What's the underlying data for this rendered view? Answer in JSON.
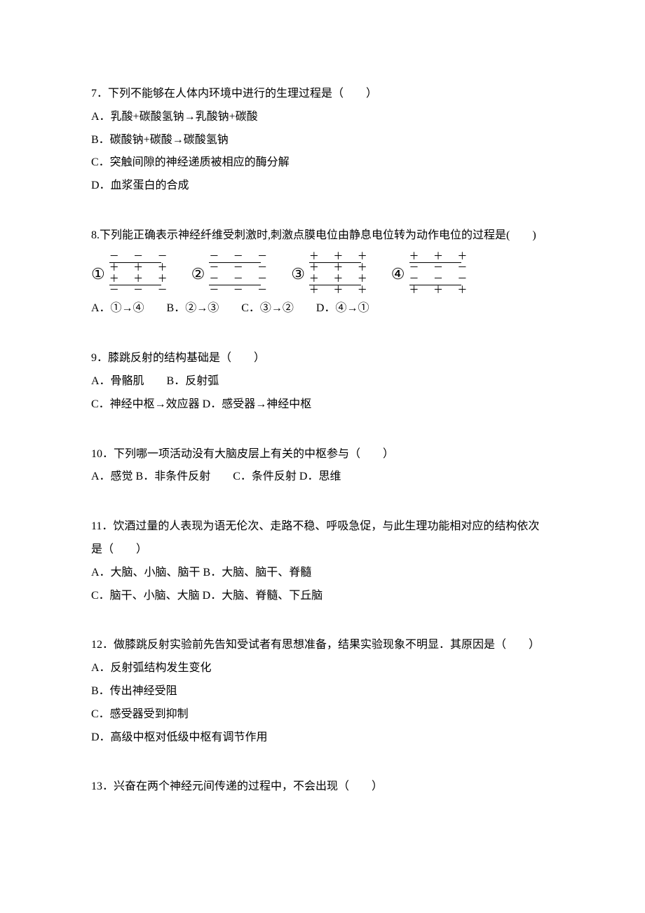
{
  "q7": {
    "text": "7．下列不能够在人体内环境中进行的生理过程是（　　）",
    "a": "A．乳酸+碳酸氢钠→乳酸钠+碳酸",
    "b": "B．碳酸钠+碳酸→碳酸氢钠",
    "c": "C．突触间隙的神经递质被相应的酶分解",
    "d": "D．血浆蛋白的合成"
  },
  "q8": {
    "text": "8.下列能正确表示神经纤维受刺激时,刺激点膜电位由静息电位转为动作电位的过程是(　　)",
    "options": "A．①→④　　B．②→③　　C．③→②　　D．④→①",
    "diagrams": {
      "nums": [
        "①",
        "②",
        "③",
        "④"
      ],
      "d1": [
        "－ － －",
        "＋ ＋ ＋",
        "＋ ＋ ＋",
        "－ － －"
      ],
      "d2": [
        "－ － －",
        "－ － －",
        "－ － －",
        "－ － －"
      ],
      "d3": [
        "＋ ＋ ＋",
        "＋ ＋ ＋",
        "＋ ＋ ＋",
        "＋ ＋ ＋"
      ],
      "d4": [
        "＋ ＋ ＋",
        "－ － －",
        "－ － －",
        "＋ ＋ ＋"
      ]
    }
  },
  "q9": {
    "text": "9．膝跳反射的结构基础是（　　）",
    "line1": "A．骨骼肌　　B．反射弧",
    "line2": "C．神经中枢→效应器 D．感受器→神经中枢"
  },
  "q10": {
    "text": "10．下列哪一项活动没有大脑皮层上有关的中枢参与（　　）",
    "options": "A．感觉 B．非条件反射　　C．条件反射 D．思维"
  },
  "q11": {
    "text1": "11．饮酒过量的人表现为语无伦次、走路不稳、呼吸急促，与此生理功能相对应的结构依次",
    "text2": "是（　　）",
    "line1": "A．大脑、小脑、脑干 B．大脑、脑干、脊髓",
    "line2": "C．脑干、小脑、大脑 D．大脑、脊髓、下丘脑"
  },
  "q12": {
    "text": "12．做膝跳反射实验前先告知受试者有思想准备，结果实验现象不明显．其原因是（　　）",
    "a": "A．反射弧结构发生变化",
    "b": "B．传出神经受阻",
    "c": "C．感受器受到抑制",
    "d": "D．高级中枢对低级中枢有调节作用"
  },
  "q13": {
    "text": "13．兴奋在两个神经元间传递的过程中，不会出现（　　）"
  }
}
